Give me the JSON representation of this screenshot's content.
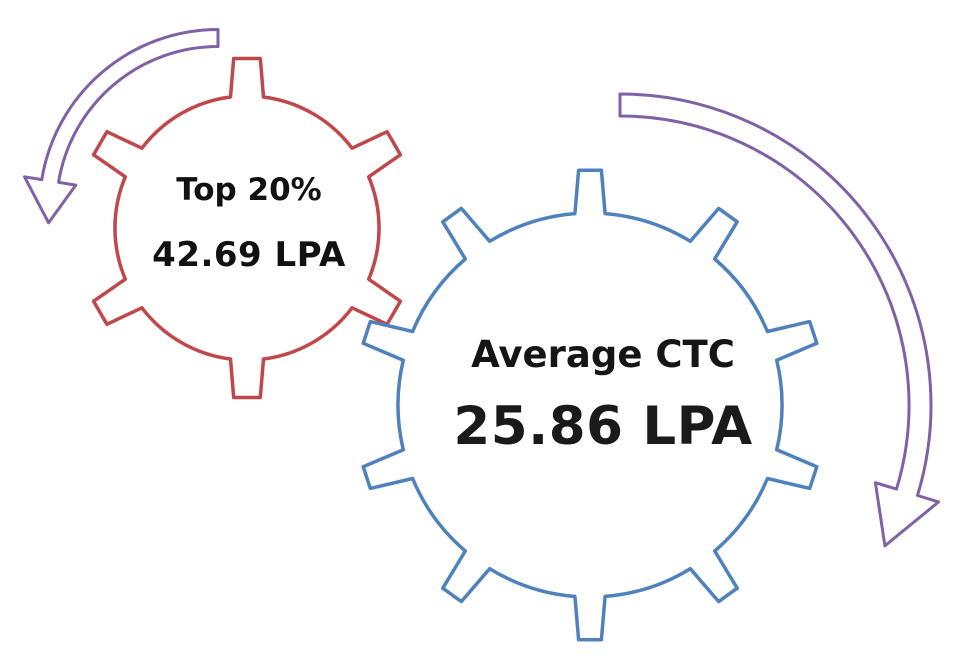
{
  "colors": {
    "small_gear_stroke": "#c0474a",
    "large_gear_stroke": "#4f82bd",
    "arrow_stroke": "#7f62a6",
    "arrow_fill": "#ffffff"
  },
  "icons": {
    "small_gear": "gear-icon",
    "large_gear": "gear-icon",
    "left_arrow": "curved-arrow-icon",
    "right_arrow": "curved-arrow-icon"
  },
  "small_gear": {
    "title": "Top 20%",
    "value": "42.69 LPA"
  },
  "large_gear": {
    "title": "Average CTC",
    "value": "25.86 LPA"
  }
}
